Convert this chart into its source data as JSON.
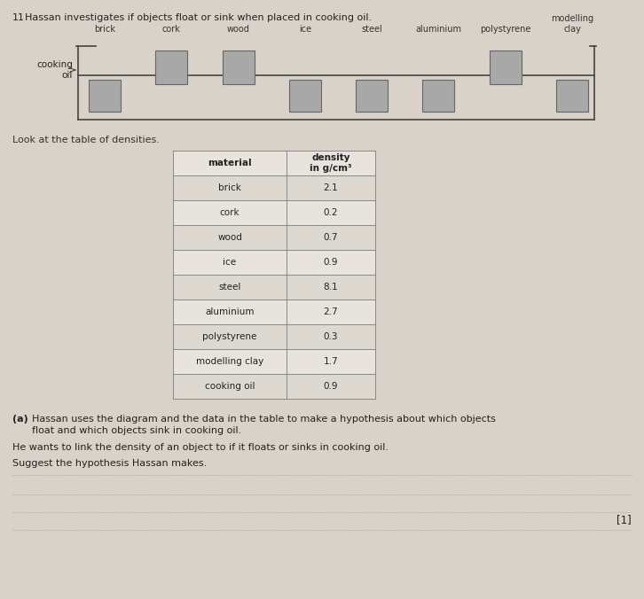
{
  "title_num": "11",
  "title_text": "Hassan investigates if objects float or sink when placed in cooking oil.",
  "background_color": "#ccc5b8",
  "page_color": "#d8d2c8",
  "labels_above": [
    "brick",
    "cork",
    "wood",
    "ice",
    "steel",
    "aluminium",
    "polystyrene",
    "modelling\nclay"
  ],
  "cooking_oil_label": "cooking\noil",
  "float_objects": [
    "cork",
    "wood",
    "polystyrene"
  ],
  "sink_objects": [
    "brick",
    "ice",
    "steel",
    "aluminium",
    "modelling clay"
  ],
  "table_materials": [
    "material",
    "brick",
    "cork",
    "wood",
    "ice",
    "steel",
    "aluminium",
    "polystyrene",
    "modelling clay",
    "cooking oil"
  ],
  "table_densities": [
    "density\nin g/cm³",
    "2.1",
    "0.2",
    "0.7",
    "0.9",
    "8.1",
    "2.7",
    "0.3",
    "1.7",
    "0.9"
  ],
  "look_text": "Look at the table of densities.",
  "q_a_label": "(a)",
  "q_a_line1": "Hassan uses the diagram and the data in the table to make a hypothesis about which objects",
  "q_a_line2": "float and which objects sink in cooking oil.",
  "q_b_text": "He wants to link the density of an object to if it floats or sinks in cooking oil.",
  "q_c_text": "Suggest the hypothesis Hassan makes.",
  "mark": "[1]",
  "box_color": "#a8a8a8",
  "line_color": "#444444",
  "table_line_color": "#888888",
  "answer_line_color": "#999999"
}
